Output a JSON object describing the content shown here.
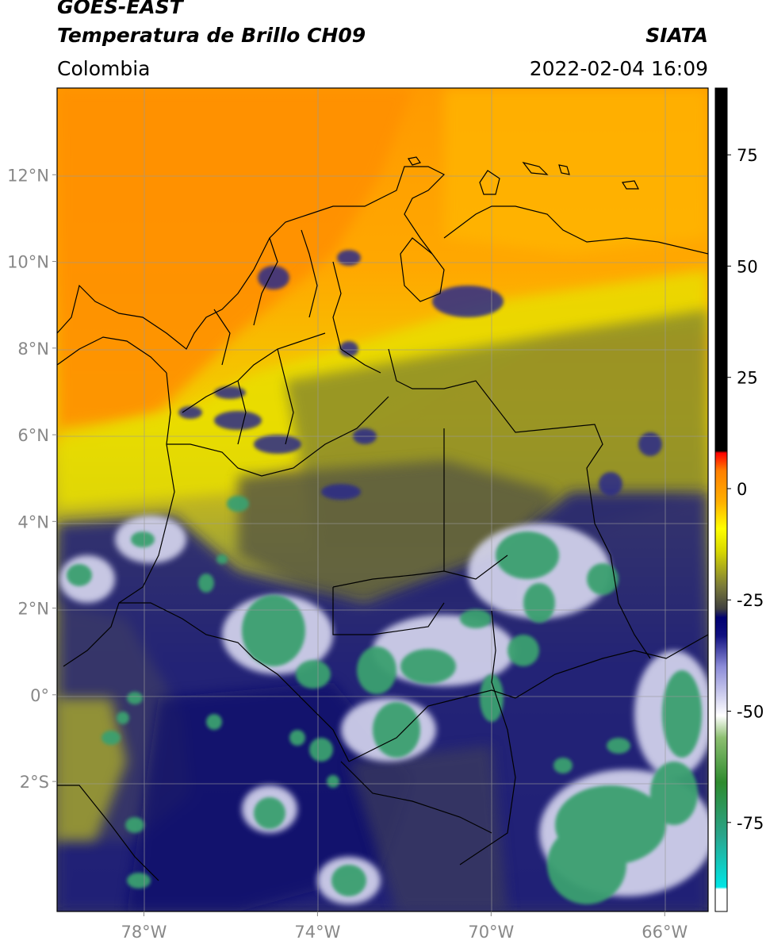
{
  "header": {
    "title_line1": "GOES-EAST",
    "title_line2": "Temperatura de Brillo CH09",
    "agency": "SIATA",
    "region": "Colombia",
    "timestamp": "2022-02-04 16:09"
  },
  "map": {
    "lon_range": [
      -80,
      -65
    ],
    "lat_range": [
      -5,
      14
    ],
    "lon_ticks": [
      {
        "value": -78,
        "label": "78°W"
      },
      {
        "value": -74,
        "label": "74°W"
      },
      {
        "value": -70,
        "label": "70°W"
      },
      {
        "value": -66,
        "label": "66°W"
      }
    ],
    "lat_ticks": [
      {
        "value": 12,
        "label": "12°N"
      },
      {
        "value": 10,
        "label": "10°N"
      },
      {
        "value": 8,
        "label": "8°N"
      },
      {
        "value": 6,
        "label": "6°N"
      },
      {
        "value": 4,
        "label": "4°N"
      },
      {
        "value": 2,
        "label": "2°N"
      },
      {
        "value": 0,
        "label": "0°"
      },
      {
        "value": -2,
        "label": "2°S"
      }
    ],
    "grid": true
  },
  "colorbar": {
    "range": [
      -95,
      90
    ],
    "ticks": [
      {
        "value": 75,
        "label": "75"
      },
      {
        "value": 50,
        "label": "50"
      },
      {
        "value": 25,
        "label": "25"
      },
      {
        "value": 0,
        "label": "0"
      },
      {
        "value": -25,
        "label": "-25"
      },
      {
        "value": -50,
        "label": "-50"
      },
      {
        "value": -75,
        "label": "-75"
      }
    ],
    "stops": [
      {
        "value": -95,
        "color": "#ffffff"
      },
      {
        "value": -90,
        "color": "#ffffff"
      },
      {
        "value": -89.5,
        "color": "#00e5e5"
      },
      {
        "value": -78,
        "color": "#2aa58c"
      },
      {
        "value": -66,
        "color": "#2e8b2e"
      },
      {
        "value": -56,
        "color": "#8cbf70"
      },
      {
        "value": -51,
        "color": "#ffffff"
      },
      {
        "value": -40,
        "color": "#8c8cd8"
      },
      {
        "value": -33,
        "color": "#101080"
      },
      {
        "value": -29,
        "color": "#000070"
      },
      {
        "value": -27,
        "color": "#404040"
      },
      {
        "value": -22,
        "color": "#7a7a3a"
      },
      {
        "value": -14,
        "color": "#d8d800"
      },
      {
        "value": -9,
        "color": "#ffff00"
      },
      {
        "value": -3,
        "color": "#ffb000"
      },
      {
        "value": 4,
        "color": "#ff8000"
      },
      {
        "value": 8,
        "color": "#ff0000"
      },
      {
        "value": 8.5,
        "color": "#000000"
      },
      {
        "value": 90,
        "color": "#000000"
      }
    ]
  }
}
